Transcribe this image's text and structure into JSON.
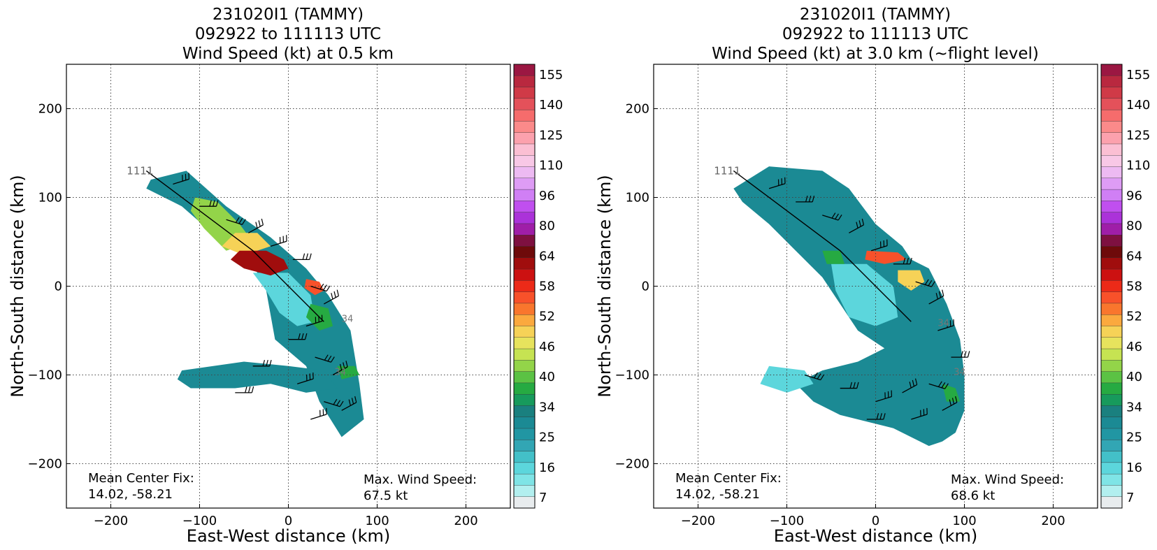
{
  "colorbar": {
    "ticks": [
      "155",
      "140",
      "125",
      "110",
      "96",
      "80",
      "64",
      "58",
      "52",
      "46",
      "40",
      "34",
      "25",
      "16",
      "7"
    ],
    "colors": [
      "#9b1742",
      "#b9283f",
      "#d03a47",
      "#e4515a",
      "#f66c6c",
      "#fb8a8a",
      "#fca1ad",
      "#fbbfd3",
      "#f8c8e6",
      "#edbaf2",
      "#de9cf5",
      "#d07ff5",
      "#c04fef",
      "#ab32d9",
      "#9f1ea8",
      "#7e1040",
      "#6e0a0a",
      "#a00d0d",
      "#cc1111",
      "#ec2a18",
      "#f8512a",
      "#f9762d",
      "#fba93e",
      "#f6d257",
      "#e7e35d",
      "#c6e352",
      "#93d449",
      "#5bc244",
      "#26aa42",
      "#179a5c",
      "#1a807f",
      "#1b8a94",
      "#2196a3",
      "#32a6b4",
      "#43c0c8",
      "#5cd6dc",
      "#7fe4e6",
      "#b2efef",
      "#e8ecee"
    ]
  },
  "xlabel": "East-West distance (km)",
  "ylabel": "North-South distance (km)",
  "xticks": [
    "−200",
    "−100",
    "0",
    "100",
    "200"
  ],
  "yticks": [
    "200",
    "100",
    "0",
    "−100",
    "−200"
  ],
  "panels": [
    {
      "title_line1": "231020I1 (TAMMY)",
      "title_line2": "092922 to 111113 UTC",
      "title_line3": "Wind Speed (kt) at 0.5 km",
      "track_label": "1111",
      "center_fix_label": "Mean Center Fix:",
      "center_fix_value": "14.02, -58.21",
      "max_wind_label": "Max. Wind Speed:",
      "max_wind_value": "67.5 kt",
      "contour_labels": [
        "34",
        "34"
      ]
    },
    {
      "title_line1": "231020I1 (TAMMY)",
      "title_line2": "092922 to 111113 UTC",
      "title_line3": "Wind Speed (kt) at 3.0 km (~flight level)",
      "track_label": "1111",
      "center_fix_label": "Mean Center Fix:",
      "center_fix_value": "14.02, -58.21",
      "max_wind_label": "Max. Wind Speed:",
      "max_wind_value": "68.6 kt",
      "contour_labels": [
        "34",
        "34"
      ]
    }
  ],
  "chart_data": [
    {
      "type": "heatmap",
      "title": "231020I1 (TAMMY) 092922 to 111113 UTC Wind Speed (kt) at 0.5 km",
      "xlabel": "East-West distance (km)",
      "ylabel": "North-South distance (km)",
      "xlim": [
        -250,
        250
      ],
      "ylim": [
        -250,
        250
      ],
      "grid": true,
      "colorbar_range_kt": [
        7,
        155
      ],
      "flight_track": [
        [
          -160,
          130
        ],
        [
          -40,
          40
        ],
        [
          40,
          -40
        ]
      ],
      "max_wind_kt": 67.5,
      "center_fix": [
        14.02,
        -58.21
      ],
      "wind_regions": [
        {
          "level_kt": 25,
          "polygon": [
            [
              -155,
              120
            ],
            [
              -115,
              130
            ],
            [
              -70,
              90
            ],
            [
              -20,
              55
            ],
            [
              20,
              20
            ],
            [
              45,
              -10
            ],
            [
              70,
              -50
            ],
            [
              80,
              -110
            ],
            [
              85,
              -150
            ],
            [
              60,
              -170
            ],
            [
              35,
              -130
            ],
            [
              20,
              -90
            ],
            [
              -15,
              -60
            ],
            [
              -25,
              -5
            ],
            [
              -40,
              25
            ],
            [
              -80,
              55
            ],
            [
              -120,
              90
            ],
            [
              -160,
              110
            ]
          ]
        },
        {
          "level_kt": 25,
          "polygon": [
            [
              -120,
              -95
            ],
            [
              -50,
              -85
            ],
            [
              0,
              -90
            ],
            [
              40,
              -95
            ],
            [
              55,
              -115
            ],
            [
              20,
              -120
            ],
            [
              -20,
              -110
            ],
            [
              -60,
              -115
            ],
            [
              -110,
              -115
            ],
            [
              -125,
              -105
            ]
          ]
        },
        {
          "level_kt": 16,
          "polygon": [
            [
              -40,
              15
            ],
            [
              0,
              15
            ],
            [
              25,
              -10
            ],
            [
              30,
              -40
            ],
            [
              10,
              -45
            ],
            [
              -10,
              -30
            ],
            [
              -25,
              -5
            ]
          ]
        },
        {
          "level_kt": 40,
          "polygon": [
            [
              -105,
              100
            ],
            [
              -80,
              95
            ],
            [
              -55,
              70
            ],
            [
              -40,
              50
            ],
            [
              -70,
              40
            ],
            [
              -95,
              65
            ],
            [
              -110,
              85
            ]
          ]
        },
        {
          "level_kt": 46,
          "polygon": [
            [
              -60,
              60
            ],
            [
              -35,
              60
            ],
            [
              -20,
              45
            ],
            [
              -50,
              35
            ],
            [
              -75,
              45
            ]
          ]
        },
        {
          "level_kt": 58,
          "polygon": [
            [
              -55,
              40
            ],
            [
              -25,
              40
            ],
            [
              -5,
              30
            ],
            [
              0,
              20
            ],
            [
              -20,
              12
            ],
            [
              -50,
              20
            ],
            [
              -65,
              30
            ]
          ]
        },
        {
          "level_kt": 52,
          "polygon": [
            [
              20,
              8
            ],
            [
              35,
              5
            ],
            [
              40,
              -5
            ],
            [
              30,
              -10
            ],
            [
              18,
              -2
            ]
          ]
        },
        {
          "level_kt": 34,
          "polygon": [
            [
              25,
              -20
            ],
            [
              45,
              -25
            ],
            [
              50,
              -45
            ],
            [
              35,
              -50
            ],
            [
              20,
              -35
            ]
          ]
        },
        {
          "level_kt": 34,
          "polygon": [
            [
              55,
              -90
            ],
            [
              75,
              -90
            ],
            [
              80,
              -100
            ],
            [
              60,
              -105
            ]
          ]
        }
      ]
    },
    {
      "type": "heatmap",
      "title": "231020I1 (TAMMY) 092922 to 111113 UTC Wind Speed (kt) at 3.0 km (~flight level)",
      "xlabel": "East-West distance (km)",
      "ylabel": "North-South distance (km)",
      "xlim": [
        -250,
        250
      ],
      "ylim": [
        -250,
        250
      ],
      "grid": true,
      "colorbar_range_kt": [
        7,
        155
      ],
      "flight_track": [
        [
          -160,
          130
        ],
        [
          -40,
          40
        ],
        [
          40,
          -40
        ]
      ],
      "max_wind_kt": 68.6,
      "center_fix": [
        14.02,
        -58.21
      ],
      "wind_regions": [
        {
          "level_kt": 25,
          "polygon": [
            [
              -160,
              110
            ],
            [
              -120,
              135
            ],
            [
              -60,
              130
            ],
            [
              -30,
              110
            ],
            [
              0,
              70
            ],
            [
              30,
              45
            ],
            [
              40,
              30
            ],
            [
              60,
              20
            ],
            [
              80,
              -20
            ],
            [
              95,
              -60
            ],
            [
              100,
              -100
            ],
            [
              100,
              -140
            ],
            [
              90,
              -165
            ],
            [
              75,
              -175
            ],
            [
              60,
              -180
            ],
            [
              20,
              -160
            ],
            [
              -40,
              -145
            ],
            [
              -70,
              -130
            ],
            [
              -90,
              -110
            ],
            [
              -60,
              -95
            ],
            [
              -20,
              -85
            ],
            [
              10,
              -70
            ],
            [
              -20,
              -50
            ],
            [
              -40,
              -20
            ],
            [
              -60,
              10
            ],
            [
              -90,
              40
            ],
            [
              -120,
              70
            ],
            [
              -150,
              95
            ]
          ]
        },
        {
          "level_kt": 16,
          "polygon": [
            [
              -50,
              25
            ],
            [
              -10,
              25
            ],
            [
              20,
              0
            ],
            [
              25,
              -35
            ],
            [
              0,
              -45
            ],
            [
              -30,
              -35
            ],
            [
              -45,
              -5
            ]
          ]
        },
        {
          "level_kt": 16,
          "polygon": [
            [
              -120,
              -90
            ],
            [
              -80,
              -95
            ],
            [
              -70,
              -110
            ],
            [
              -100,
              -120
            ],
            [
              -130,
              -110
            ]
          ]
        },
        {
          "level_kt": 52,
          "polygon": [
            [
              -10,
              40
            ],
            [
              25,
              38
            ],
            [
              35,
              30
            ],
            [
              10,
              25
            ],
            [
              -12,
              30
            ]
          ]
        },
        {
          "level_kt": 46,
          "polygon": [
            [
              25,
              18
            ],
            [
              50,
              18
            ],
            [
              55,
              5
            ],
            [
              40,
              -5
            ],
            [
              25,
              5
            ]
          ]
        },
        {
          "level_kt": 34,
          "polygon": [
            [
              -60,
              40
            ],
            [
              -40,
              40
            ],
            [
              -35,
              25
            ],
            [
              -55,
              25
            ]
          ]
        },
        {
          "level_kt": 34,
          "polygon": [
            [
              75,
              -110
            ],
            [
              90,
              -115
            ],
            [
              95,
              -130
            ],
            [
              80,
              -130
            ]
          ]
        }
      ]
    }
  ]
}
